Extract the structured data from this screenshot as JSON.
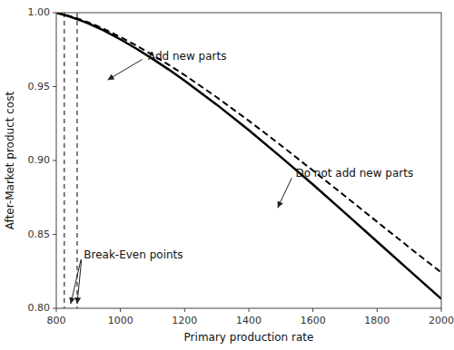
{
  "chart_data": {
    "type": "line",
    "xlabel": "Primary production rate",
    "ylabel": "After-Market product cost",
    "xlim": [
      800,
      2000
    ],
    "ylim": [
      0.8,
      1.0
    ],
    "xticks": [
      800,
      1000,
      1200,
      1400,
      1600,
      1800,
      2000
    ],
    "yticks": [
      {
        "value": 0.8,
        "label": "0.80"
      },
      0.85,
      {
        "value": 0.9,
        "label": "0.90"
      },
      0.95,
      {
        "value": 1.0,
        "label": "1.00"
      }
    ],
    "grid": false,
    "x": [
      800,
      820,
      840,
      860,
      880,
      900,
      920,
      940,
      960,
      980,
      1000,
      1050,
      1100,
      1150,
      1200,
      1300,
      1400,
      1500,
      1600,
      1700,
      1800,
      1900,
      2000
    ],
    "series": [
      {
        "color": "black",
        "line_style": "solid",
        "values": [
          1.0,
          0.9988,
          0.9975,
          0.996,
          0.9944,
          0.9927,
          0.9908,
          0.9888,
          0.9866,
          0.9843,
          0.9819,
          0.9756,
          0.9688,
          0.9616,
          0.954,
          0.9378,
          0.9205,
          0.9024,
          0.8837,
          0.8645,
          0.8451,
          0.8257,
          0.8064
        ]
      },
      {
        "color": "black",
        "line_style": "dashed",
        "values": [
          1.0,
          0.999,
          0.9978,
          0.9965,
          0.995,
          0.9934,
          0.9917,
          0.9898,
          0.9878,
          0.9857,
          0.9835,
          0.9777,
          0.9714,
          0.9648,
          0.9578,
          0.9428,
          0.9269,
          0.9103,
          0.8932,
          0.8759,
          0.8585,
          0.8412,
          0.8242
        ]
      }
    ],
    "vlines": [
      {
        "x": 825,
        "color": "black",
        "line_style": "dashed"
      },
      {
        "x": 865,
        "color": "black",
        "line_style": "dashed"
      }
    ],
    "annotations": [
      {
        "text": "Add new parts",
        "xytext": [
          1080,
          0.97
        ],
        "xy": [
          [
            960,
            0.9545
          ]
        ]
      },
      {
        "text": "Do not add new parts",
        "xytext": [
          1540,
          0.891
        ],
        "xy": [
          [
            1490,
            0.868
          ]
        ]
      },
      {
        "text": "Break-Even points",
        "xytext": [
          880,
          0.836
        ],
        "xy": [
          [
            845,
            0.803
          ],
          [
            865,
            0.803
          ]
        ]
      }
    ]
  }
}
